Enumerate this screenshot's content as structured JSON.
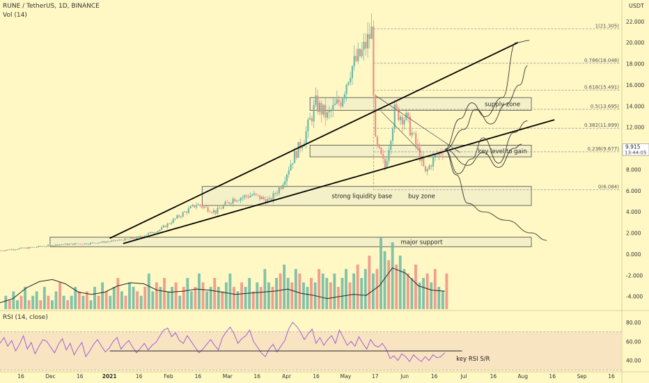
{
  "header": {
    "symbol": "RUNE / TetherUS, 1D, BINANCE",
    "volume_indicator": "Vol (14)",
    "rsi_indicator": "RSI (14, close)",
    "currency": "USDT"
  },
  "colors": {
    "background": "#fff8c4",
    "up": "#6cb8a6",
    "down": "#ef8f84",
    "zone_fill": "#f3f0c8",
    "zone_stroke": "#333333",
    "fib_line": "#999999",
    "rsi_line": "#a05fd0",
    "rsi_band": "#f6dcc2",
    "price_tag": "#ffffff",
    "trendline": "#000000"
  },
  "chart_data": {
    "type": "candlestick",
    "price_axis": {
      "ticks": [
        "22.000",
        "20.000",
        "18.000",
        "16.000",
        "14.000",
        "12.000",
        "10.000",
        "8.000",
        "6.000",
        "4.000",
        "2.000",
        "0.000",
        "-2.000",
        "-4.000"
      ],
      "tick_values": [
        22,
        20,
        18,
        16,
        14,
        12,
        10,
        8,
        6,
        4,
        2,
        0,
        -2,
        -4
      ],
      "range": [
        -5.6,
        23.5
      ]
    },
    "current_price": "9.915",
    "countdown": "13:44:05",
    "time_axis": {
      "labels": [
        "16",
        "Dec",
        "16",
        "2021",
        "16",
        "Feb",
        "16",
        "Mar",
        "16",
        "Apr",
        "16",
        "May",
        "17",
        "Jun",
        "16",
        "Jul",
        "16",
        "Aug",
        "16",
        "Sep",
        "16"
      ],
      "range": [
        "2020-11-05",
        "2021-09-24"
      ]
    },
    "fib_levels": [
      {
        "label": "1(21.305)",
        "value": 21.305
      },
      {
        "label": "0.786(18.048)",
        "value": 18.048
      },
      {
        "label": "0.618(15.491)",
        "value": 15.491
      },
      {
        "label": "0.5(13.695)",
        "value": 13.695
      },
      {
        "label": "0.382(11.899)",
        "value": 11.899
      },
      {
        "label": "0.236(9.677)",
        "value": 9.677
      },
      {
        "label": "0(6.084)",
        "value": 6.084
      }
    ],
    "zones": [
      {
        "label": "supply zone",
        "low": 13.6,
        "high": 14.8
      },
      {
        "label": "key level to gain",
        "low": 9.2,
        "high": 10.3
      },
      {
        "label": "strong liquidity base",
        "low": 4.6,
        "high": 6.4
      },
      {
        "label": "buy zone",
        "low": 4.6,
        "high": 6.4
      },
      {
        "label": "major support",
        "low": 0.7,
        "high": 1.6
      }
    ],
    "rsi_axis": {
      "ticks": [
        "80.00",
        "60.00",
        "40.00"
      ],
      "tick_values": [
        80,
        60,
        40
      ],
      "range": [
        31,
        88
      ]
    },
    "rsi_annotation": "key RSI S/R",
    "rsi_sr_level": 50,
    "rsi_band": [
      30,
      70
    ],
    "price_series": [
      {
        "date": "2020-11-05",
        "close": 0.35
      },
      {
        "date": "2020-11-20",
        "close": 0.6
      },
      {
        "date": "2020-12-05",
        "close": 0.9
      },
      {
        "date": "2020-12-20",
        "close": 1.0
      },
      {
        "date": "2021-01-01",
        "close": 1.2
      },
      {
        "date": "2021-01-14",
        "close": 1.5
      },
      {
        "date": "2021-01-27",
        "close": 2.3
      },
      {
        "date": "2021-02-06",
        "close": 3.6
      },
      {
        "date": "2021-02-15",
        "close": 4.7
      },
      {
        "date": "2021-02-25",
        "close": 4.0
      },
      {
        "date": "2021-03-06",
        "close": 5.2
      },
      {
        "date": "2021-03-16",
        "close": 5.6
      },
      {
        "date": "2021-03-25",
        "close": 5.0
      },
      {
        "date": "2021-03-31",
        "close": 6.5
      },
      {
        "date": "2021-04-06",
        "close": 9.0
      },
      {
        "date": "2021-04-12",
        "close": 11.0
      },
      {
        "date": "2021-04-18",
        "close": 14.2
      },
      {
        "date": "2021-04-24",
        "close": 13.0
      },
      {
        "date": "2021-05-01",
        "close": 14.6
      },
      {
        "date": "2021-05-06",
        "close": 17.5
      },
      {
        "date": "2021-05-12",
        "close": 19.0
      },
      {
        "date": "2021-05-17",
        "close": 21.0
      },
      {
        "date": "2021-05-19",
        "close": 10.5
      },
      {
        "date": "2021-05-24",
        "close": 8.2
      },
      {
        "date": "2021-05-29",
        "close": 13.5
      },
      {
        "date": "2021-06-04",
        "close": 12.8
      },
      {
        "date": "2021-06-09",
        "close": 10.4
      },
      {
        "date": "2021-06-14",
        "close": 7.6
      },
      {
        "date": "2021-06-18",
        "close": 9.0
      },
      {
        "date": "2021-06-23",
        "close": 9.9
      }
    ],
    "volume_bars": [
      3,
      2,
      4,
      2,
      3,
      5,
      2,
      3,
      4,
      2,
      5,
      3,
      2,
      4,
      6,
      3,
      2,
      3,
      5,
      4,
      3,
      4,
      2,
      5,
      3,
      6,
      4,
      3,
      5,
      7,
      4,
      3,
      6,
      5,
      4,
      3,
      5,
      8,
      4,
      6,
      5,
      7,
      4,
      5,
      6,
      3,
      5,
      7,
      4,
      5,
      8,
      6,
      4,
      5,
      7,
      5,
      4,
      6,
      8,
      5,
      4,
      6,
      5,
      7,
      4,
      6,
      5,
      9,
      6,
      5,
      7,
      8,
      10,
      7,
      6,
      9,
      8,
      6,
      5,
      7,
      6,
      9,
      8,
      7,
      6,
      8,
      5,
      7,
      9,
      6,
      8,
      10,
      7,
      9,
      12,
      8,
      9,
      16,
      13,
      11,
      15,
      10,
      12,
      9,
      8,
      7,
      10,
      6,
      7,
      8,
      6,
      9,
      5,
      4,
      8
    ],
    "volume_ma": [
      -4.6,
      -4.2,
      -3.2,
      -2.6,
      -2.4,
      -2.8,
      -3.6,
      -3.8,
      -3.6,
      -3.0,
      -2.7,
      -2.8,
      -3.4,
      -3.6,
      -3.5,
      -3.3,
      -3.4,
      -3.6,
      -3.8,
      -3.7,
      -3.6,
      -3.5,
      -3.3,
      -3.7,
      -3.9,
      -4.2,
      -4.0,
      -3.8,
      -3.9,
      -3.0,
      -1.3,
      -1.8,
      -3.0,
      -3.4,
      -3.5
    ],
    "rsi_series": [
      58,
      64,
      55,
      61,
      50,
      57,
      66,
      52,
      59,
      47,
      55,
      62,
      60,
      54,
      48,
      57,
      63,
      51,
      58,
      46,
      53,
      59,
      44,
      50,
      57,
      62,
      55,
      49,
      53,
      60,
      64,
      52,
      57,
      61,
      54,
      48,
      53,
      58,
      51,
      56,
      59,
      66,
      72,
      74,
      65,
      69,
      61,
      58,
      66,
      60,
      54,
      48,
      52,
      57,
      62,
      56,
      51,
      64,
      70,
      75,
      68,
      58,
      63,
      66,
      72,
      60,
      54,
      48,
      44,
      52,
      57,
      49,
      55,
      61,
      73,
      80,
      76,
      70,
      62,
      68,
      73,
      58,
      64,
      56,
      62,
      66,
      58,
      72,
      64,
      56,
      60,
      55,
      65,
      58,
      52,
      62,
      56,
      54,
      58,
      52,
      42,
      45,
      40,
      47,
      44,
      39,
      46,
      42,
      39,
      44,
      40,
      46,
      43,
      44,
      48
    ]
  },
  "drawings": {
    "trendline_upper": {
      "start": {
        "date": "2021-01-01",
        "value": 1.5
      },
      "end": {
        "date": "2021-08-01",
        "value": 20.0
      }
    },
    "trendline_lower": {
      "start": {
        "date": "2021-01-08",
        "value": 1.0
      },
      "end": {
        "date": "2021-08-20",
        "value": 12.7
      }
    },
    "projection_paths": 5
  }
}
